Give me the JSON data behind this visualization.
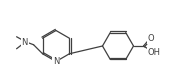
{
  "background": "#ffffff",
  "line_color": "#404040",
  "line_width": 0.9,
  "font_size": 5.5,
  "bond_color": "#404040",
  "atoms": {
    "N_label": "N",
    "O_label": "O",
    "OH_label": "OH"
  },
  "figsize": [
    1.74,
    0.77
  ],
  "dpi": 100
}
